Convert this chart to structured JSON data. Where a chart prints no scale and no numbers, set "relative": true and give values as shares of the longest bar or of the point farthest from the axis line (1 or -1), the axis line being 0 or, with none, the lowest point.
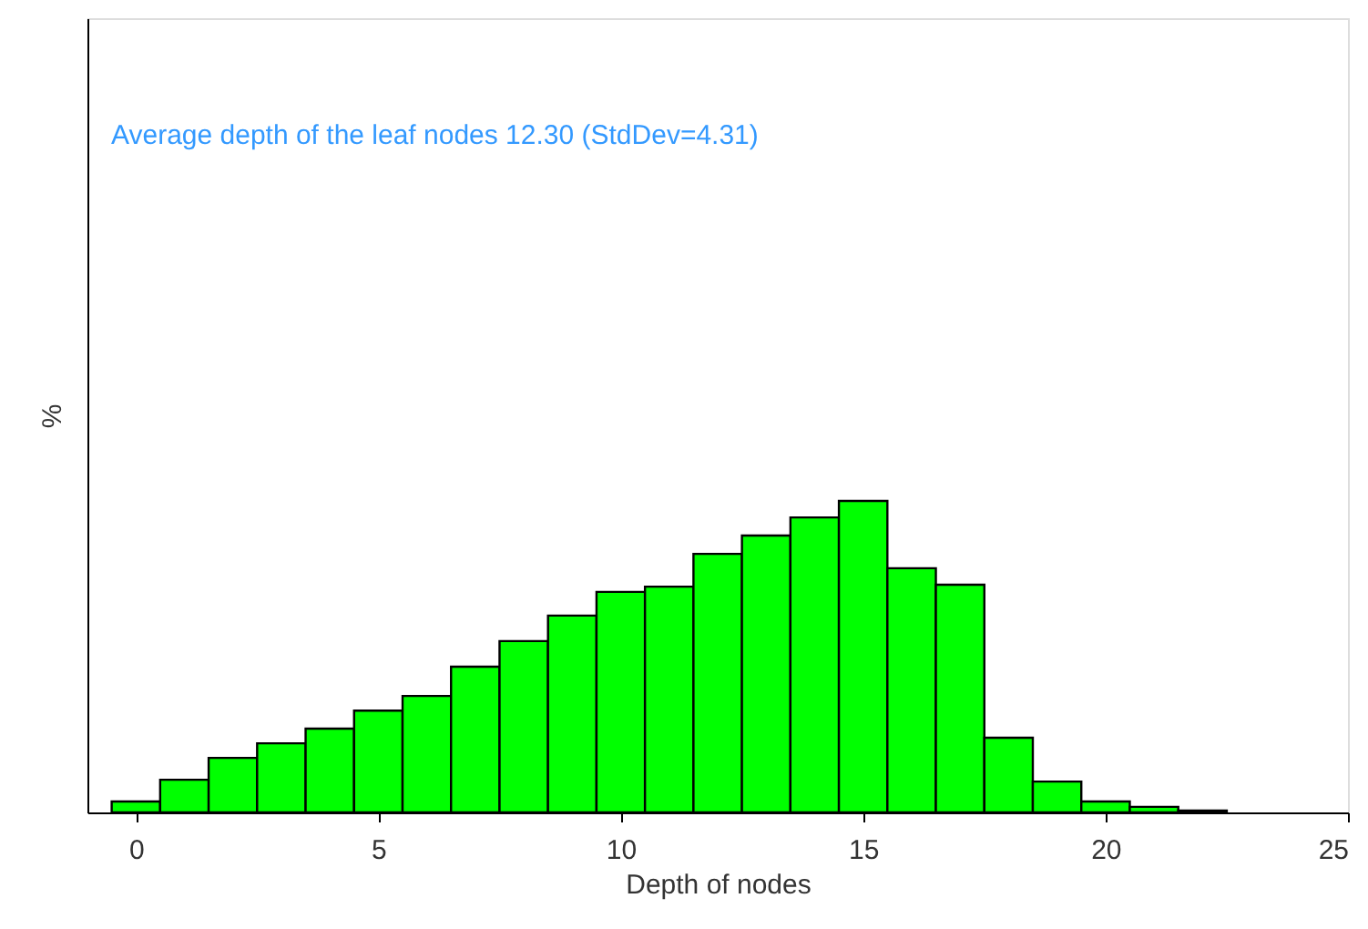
{
  "chart_data": {
    "type": "bar",
    "relative": true,
    "x": [
      0,
      1,
      2,
      3,
      4,
      5,
      6,
      7,
      8,
      9,
      10,
      11,
      12,
      13,
      14,
      15,
      16,
      17,
      18,
      19,
      20,
      21,
      22
    ],
    "values": [
      0.035,
      0.105,
      0.175,
      0.222,
      0.269,
      0.327,
      0.374,
      0.468,
      0.55,
      0.632,
      0.708,
      0.725,
      0.83,
      0.889,
      0.947,
      1,
      0.784,
      0.731,
      0.24,
      0.099,
      0.035,
      0.018,
      0.006
    ],
    "color": "#00ff00",
    "xlim": [
      -1,
      25
    ],
    "xticks": [
      0,
      5,
      10,
      15,
      20,
      25
    ],
    "xlabel": "Depth of nodes",
    "ylabel": "%",
    "annotations": [
      "Average depth of the leaf nodes 12.30 (StdDev=4.31)"
    ],
    "tick_labels": "x",
    "grid": false,
    "legend": false
  }
}
